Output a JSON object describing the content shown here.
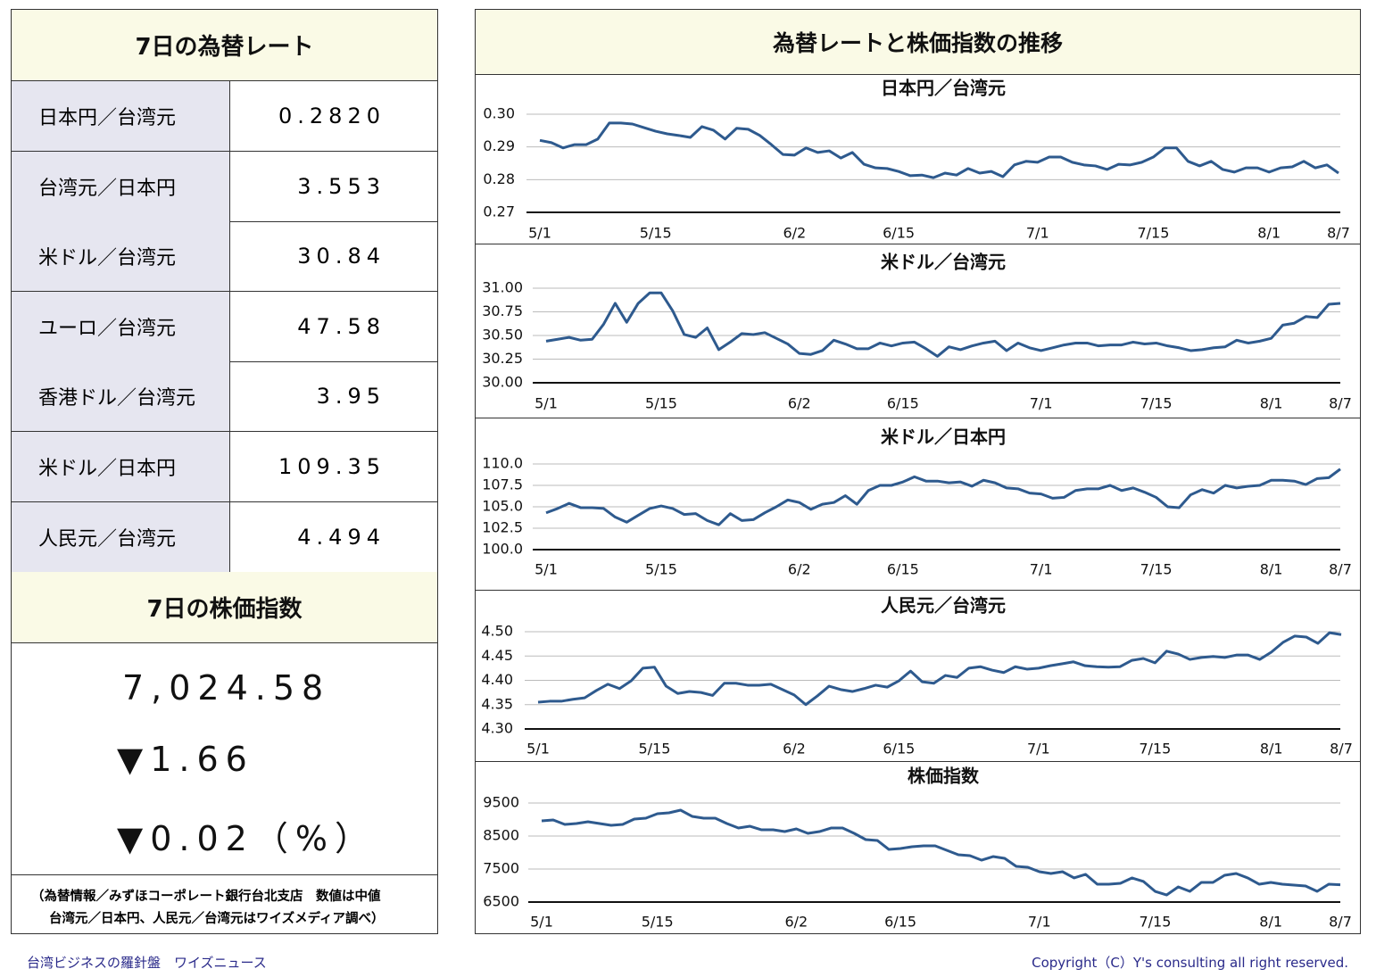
{
  "left": {
    "rates_title": "7日の為替レート",
    "rates": [
      [
        "日本円／台湾元",
        "0.2820"
      ],
      [
        "台湾元／日本円",
        "3.553"
      ],
      [
        "米ドル／台湾元",
        "30.84"
      ],
      [
        "ユーロ／台湾元",
        "47.58"
      ],
      [
        "香港ドル／台湾元",
        "3.95"
      ],
      [
        "米ドル／日本円",
        "109.35"
      ],
      [
        "人民元／台湾元",
        "4.494"
      ]
    ],
    "index_title": "7日の株価指数",
    "index_value": "7,024.58",
    "index_change": "▼1.66",
    "index_change_pct": "▼0.02（%）",
    "note": [
      "（為替情報／みずほコーポレート銀行台北支店　数値は中値",
      "台湾元／日本円、人民元／台湾元はワイズメディア調べ）"
    ]
  },
  "panel_title": "為替レートと株価指数の推移",
  "footer": {
    "left": "台湾ビジネスの羅針盤　ワイズニュース",
    "right": "Copyright（C）Y's consulting all right reserved."
  },
  "chart_data": [
    {
      "type": "line",
      "title": "日本円／台湾元",
      "color": "#2e5a8e",
      "categories": [
        "5/1",
        null,
        null,
        null,
        null,
        null,
        null,
        null,
        null,
        null,
        "5/15",
        null,
        null,
        null,
        null,
        null,
        null,
        null,
        null,
        null,
        null,
        null,
        "6/2",
        null,
        null,
        null,
        null,
        null,
        null,
        null,
        null,
        "6/15",
        null,
        null,
        null,
        null,
        null,
        null,
        null,
        null,
        null,
        null,
        null,
        "7/1",
        null,
        null,
        null,
        null,
        null,
        null,
        null,
        null,
        null,
        "7/15",
        null,
        null,
        null,
        null,
        null,
        null,
        null,
        null,
        null,
        "8/1",
        null,
        null,
        null,
        null,
        null,
        "8/7"
      ],
      "values": [
        0.292,
        0.2913,
        0.2897,
        0.2907,
        0.2907,
        0.2924,
        0.2973,
        0.2973,
        0.297,
        0.2959,
        0.2948,
        0.294,
        0.2935,
        0.2929,
        0.2962,
        0.2951,
        0.2924,
        0.2957,
        0.2954,
        0.2935,
        0.2907,
        0.2877,
        0.2875,
        0.2897,
        0.2883,
        0.2888,
        0.2866,
        0.2883,
        0.2847,
        0.2836,
        0.2834,
        0.2825,
        0.2812,
        0.2814,
        0.2806,
        0.282,
        0.2814,
        0.2834,
        0.282,
        0.2825,
        0.2809,
        0.2845,
        0.2856,
        0.2853,
        0.2869,
        0.2869,
        0.2853,
        0.2845,
        0.2842,
        0.2831,
        0.2847,
        0.2845,
        0.2853,
        0.2869,
        0.2897,
        0.2897,
        0.2856,
        0.2842,
        0.2856,
        0.2831,
        0.2823,
        0.2836,
        0.2836,
        0.2823,
        0.2836,
        0.2839,
        0.2856,
        0.2836,
        0.2845,
        0.282
      ],
      "ylim": [
        0.27,
        0.3
      ],
      "yticks": [
        0.27,
        0.28,
        0.29,
        {
          "value": 0.3,
          "label": "0.30"
        }
      ],
      "grid": true
    },
    {
      "type": "line",
      "title": "米ドル／台湾元",
      "color": "#2e5a8e",
      "categories": [
        "5/1",
        null,
        null,
        null,
        null,
        null,
        null,
        null,
        null,
        null,
        "5/15",
        null,
        null,
        null,
        null,
        null,
        null,
        null,
        null,
        null,
        null,
        null,
        "6/2",
        null,
        null,
        null,
        null,
        null,
        null,
        null,
        null,
        "6/15",
        null,
        null,
        null,
        null,
        null,
        null,
        null,
        null,
        null,
        null,
        null,
        "7/1",
        null,
        null,
        null,
        null,
        null,
        null,
        null,
        null,
        null,
        "7/15",
        null,
        null,
        null,
        null,
        null,
        null,
        null,
        null,
        null,
        "8/1",
        null,
        null,
        null,
        null,
        null,
        "8/7"
      ],
      "values": [
        30.44,
        30.46,
        30.48,
        30.45,
        30.46,
        30.62,
        30.84,
        30.64,
        30.84,
        30.95,
        30.95,
        30.76,
        30.51,
        30.48,
        30.58,
        30.35,
        30.43,
        30.52,
        30.51,
        30.53,
        30.47,
        30.41,
        30.31,
        30.3,
        30.34,
        30.45,
        30.41,
        30.36,
        30.36,
        30.42,
        30.39,
        30.42,
        30.43,
        30.36,
        30.28,
        30.38,
        30.35,
        30.39,
        30.42,
        30.44,
        30.34,
        30.42,
        30.37,
        30.34,
        30.37,
        30.4,
        30.42,
        30.42,
        30.39,
        30.4,
        30.4,
        30.43,
        30.41,
        30.42,
        30.39,
        30.37,
        30.34,
        30.35,
        30.37,
        30.38,
        30.45,
        30.42,
        30.44,
        30.47,
        30.61,
        30.63,
        30.7,
        30.69,
        30.83,
        30.84
      ],
      "ylim": [
        30,
        31
      ],
      "yticks": [
        {
          "value": 30,
          "label": "30.00"
        },
        30.25,
        {
          "value": 30.5,
          "label": "30.50"
        },
        30.75,
        {
          "value": 31,
          "label": "31.00"
        }
      ],
      "grid": true
    },
    {
      "type": "line",
      "title": "米ドル／日本円",
      "color": "#2e5a8e",
      "categories": [
        "5/1",
        null,
        null,
        null,
        null,
        null,
        null,
        null,
        null,
        null,
        "5/15",
        null,
        null,
        null,
        null,
        null,
        null,
        null,
        null,
        null,
        null,
        null,
        "6/2",
        null,
        null,
        null,
        null,
        null,
        null,
        null,
        null,
        "6/15",
        null,
        null,
        null,
        null,
        null,
        null,
        null,
        null,
        null,
        null,
        null,
        "7/1",
        null,
        null,
        null,
        null,
        null,
        null,
        null,
        null,
        null,
        "7/15",
        null,
        null,
        null,
        null,
        null,
        null,
        null,
        null,
        null,
        "8/1",
        null,
        null,
        null,
        null,
        null,
        "8/7"
      ],
      "values": [
        104.3,
        104.8,
        105.4,
        104.9,
        104.9,
        104.8,
        103.8,
        103.2,
        104.0,
        104.8,
        105.1,
        104.8,
        104.1,
        104.2,
        103.4,
        102.9,
        104.2,
        103.4,
        103.5,
        104.3,
        105.0,
        105.8,
        105.5,
        104.7,
        105.3,
        105.5,
        106.3,
        105.3,
        106.9,
        107.5,
        107.5,
        107.9,
        108.5,
        108.0,
        108.0,
        107.8,
        107.9,
        107.4,
        108.1,
        107.8,
        107.2,
        107.1,
        106.6,
        106.5,
        106.0,
        106.1,
        106.9,
        107.1,
        107.1,
        107.5,
        106.9,
        107.2,
        106.7,
        106.1,
        105.0,
        104.9,
        106.4,
        107.0,
        106.6,
        107.5,
        107.2,
        107.4,
        107.5,
        108.1,
        108.1,
        108.0,
        107.6,
        108.3,
        108.4,
        109.4
      ],
      "ylim": [
        100,
        110
      ],
      "yticks": [
        {
          "value": 100,
          "label": "100.0"
        },
        102.5,
        {
          "value": 105,
          "label": "105.0"
        },
        107.5,
        {
          "value": 110,
          "label": "110.0"
        }
      ],
      "grid": true
    },
    {
      "type": "line",
      "title": "人民元／台湾元",
      "color": "#2e5a8e",
      "categories": [
        "5/1",
        null,
        null,
        null,
        null,
        null,
        null,
        null,
        null,
        null,
        "5/15",
        null,
        null,
        null,
        null,
        null,
        null,
        null,
        null,
        null,
        null,
        null,
        "6/2",
        null,
        null,
        null,
        null,
        null,
        null,
        null,
        null,
        "6/15",
        null,
        null,
        null,
        null,
        null,
        null,
        null,
        null,
        null,
        null,
        null,
        "7/1",
        null,
        null,
        null,
        null,
        null,
        null,
        null,
        null,
        null,
        "7/15",
        null,
        null,
        null,
        null,
        null,
        null,
        null,
        null,
        null,
        "8/1",
        null,
        null,
        null,
        null,
        null,
        "8/7"
      ],
      "values": [
        4.355,
        4.357,
        4.357,
        4.361,
        4.364,
        4.379,
        4.392,
        4.383,
        4.399,
        4.425,
        4.427,
        4.388,
        4.373,
        4.377,
        4.375,
        4.369,
        4.394,
        4.394,
        4.39,
        4.39,
        4.392,
        4.381,
        4.37,
        4.35,
        4.368,
        4.388,
        4.381,
        4.377,
        4.383,
        4.39,
        4.386,
        4.399,
        4.419,
        4.397,
        4.394,
        4.41,
        4.406,
        4.425,
        4.428,
        4.421,
        4.416,
        4.428,
        4.423,
        4.425,
        4.43,
        4.434,
        4.438,
        4.43,
        4.428,
        4.427,
        4.428,
        4.441,
        4.445,
        4.436,
        4.46,
        4.454,
        4.443,
        4.447,
        4.449,
        4.447,
        4.452,
        4.452,
        4.443,
        4.458,
        4.478,
        4.491,
        4.489,
        4.476,
        4.498,
        4.494
      ],
      "ylim": [
        4.3,
        4.5
      ],
      "yticks": [
        {
          "value": 4.3,
          "label": "4.30"
        },
        4.35,
        {
          "value": 4.4,
          "label": "4.40"
        },
        4.45,
        {
          "value": 4.5,
          "label": "4.50"
        }
      ],
      "grid": true
    },
    {
      "type": "line",
      "title": "株価指数",
      "color": "#2e5a8e",
      "categories": [
        "5/1",
        null,
        null,
        null,
        null,
        null,
        null,
        null,
        null,
        null,
        "5/15",
        null,
        null,
        null,
        null,
        null,
        null,
        null,
        null,
        null,
        null,
        null,
        "6/2",
        null,
        null,
        null,
        null,
        null,
        null,
        null,
        null,
        "6/15",
        null,
        null,
        null,
        null,
        null,
        null,
        null,
        null,
        null,
        null,
        null,
        "7/1",
        null,
        null,
        null,
        null,
        null,
        null,
        null,
        null,
        null,
        "7/15",
        null,
        null,
        null,
        null,
        null,
        null,
        null,
        null,
        null,
        "8/1",
        null,
        null,
        null,
        null,
        null,
        "8/7"
      ],
      "values": [
        8959,
        8986,
        8851,
        8878,
        8932,
        8878,
        8824,
        8851,
        9013,
        9040,
        9176,
        9203,
        9284,
        9095,
        9040,
        9040,
        8878,
        8743,
        8797,
        8689,
        8689,
        8635,
        8716,
        8581,
        8635,
        8743,
        8743,
        8581,
        8392,
        8365,
        8094,
        8122,
        8176,
        8203,
        8203,
        8068,
        7932,
        7905,
        7770,
        7878,
        7824,
        7581,
        7554,
        7419,
        7365,
        7419,
        7230,
        7338,
        7040,
        7040,
        7068,
        7230,
        7122,
        6824,
        6716,
        6959,
        6824,
        7095,
        7095,
        7311,
        7365,
        7230,
        7040,
        7095,
        7040,
        7014,
        6986,
        6824,
        7040,
        7025
      ],
      "ylim": [
        6500,
        9500
      ],
      "yticks": [
        6500,
        7500,
        8500,
        9500
      ],
      "grid": true
    }
  ]
}
